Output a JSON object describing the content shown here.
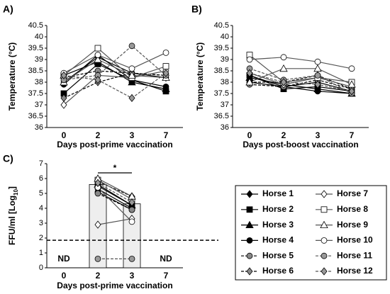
{
  "legend": [
    {
      "name": "Horse 1",
      "marker": "diamond",
      "fill": "#000000",
      "line": "#000000",
      "dashed": false
    },
    {
      "name": "Horse 2",
      "marker": "square",
      "fill": "#000000",
      "line": "#000000",
      "dashed": false
    },
    {
      "name": "Horse 3",
      "marker": "triangle",
      "fill": "#000000",
      "line": "#000000",
      "dashed": false
    },
    {
      "name": "Horse 4",
      "marker": "circle",
      "fill": "#000000",
      "line": "#000000",
      "dashed": false
    },
    {
      "name": "Horse 5",
      "marker": "circle",
      "fill": "#888888",
      "line": "#000000",
      "dashed": true
    },
    {
      "name": "Horse 6",
      "marker": "diamond",
      "fill": "#888888",
      "line": "#000000",
      "dashed": true
    },
    {
      "name": "Horse 7",
      "marker": "diamond",
      "fill": "#ffffff",
      "line": "#555555",
      "dashed": false
    },
    {
      "name": "Horse 8",
      "marker": "square",
      "fill": "#ffffff",
      "line": "#555555",
      "dashed": false
    },
    {
      "name": "Horse 9",
      "marker": "triangle",
      "fill": "#ffffff",
      "line": "#555555",
      "dashed": false
    },
    {
      "name": "Horse 10",
      "marker": "circle",
      "fill": "#ffffff",
      "line": "#555555",
      "dashed": false
    },
    {
      "name": "Horse 11",
      "marker": "circle",
      "fill": "#999999",
      "line": "#555555",
      "dashed": true
    },
    {
      "name": "Horse 12",
      "marker": "diamond",
      "fill": "#999999",
      "line": "#555555",
      "dashed": true
    }
  ],
  "chart_data": [
    {
      "type": "line",
      "panel": "A)",
      "xlabel": "Days post-prime vaccination",
      "ylabel": "Temperature (°C)",
      "categories": [
        "0",
        "2",
        "3",
        "7"
      ],
      "ylim": [
        36,
        40.5
      ],
      "yticks": [
        36,
        36.5,
        37,
        37.5,
        38,
        38.5,
        39,
        39.5,
        40,
        40.5
      ],
      "series": [
        {
          "values": [
            38.0,
            39.1,
            38.4,
            38.2
          ]
        },
        {
          "values": [
            37.5,
            38.8,
            38.1,
            37.6
          ]
        },
        {
          "values": [
            38.3,
            38.9,
            38.0,
            37.7
          ]
        },
        {
          "values": [
            37.9,
            39.2,
            38.1,
            37.8
          ]
        },
        {
          "values": [
            38.2,
            38.5,
            38.4,
            38.3
          ]
        },
        {
          "values": [
            37.3,
            38.0,
            38.4,
            38.3
          ]
        },
        {
          "values": [
            37.0,
            38.3,
            38.2,
            38.5
          ]
        },
        {
          "values": [
            38.3,
            39.5,
            38.2,
            38.7
          ]
        },
        {
          "values": [
            38.0,
            39.0,
            38.3,
            38.2
          ]
        },
        {
          "values": [
            38.4,
            39.2,
            38.6,
            39.3
          ]
        },
        {
          "values": [
            38.1,
            38.3,
            39.6,
            38.3
          ]
        },
        {
          "values": [
            38.3,
            38.1,
            37.3,
            38.4
          ]
        }
      ]
    },
    {
      "type": "line",
      "panel": "B)",
      "xlabel": "Days post-boost vaccination",
      "ylabel": "Temperature (°C)",
      "categories": [
        "0",
        "2",
        "3",
        "7"
      ],
      "ylim": [
        36,
        40.5
      ],
      "yticks": [
        36,
        36.5,
        37,
        37.5,
        38,
        38.5,
        39,
        39.5,
        40,
        40.5
      ],
      "series": [
        {
          "values": [
            38.3,
            37.8,
            38.0,
            37.6
          ]
        },
        {
          "values": [
            38.3,
            37.7,
            37.8,
            37.6
          ]
        },
        {
          "values": [
            38.2,
            37.9,
            37.7,
            37.5
          ]
        },
        {
          "values": [
            38.0,
            37.8,
            37.6,
            37.5
          ]
        },
        {
          "values": [
            37.9,
            37.8,
            38.1,
            37.7
          ]
        },
        {
          "values": [
            38.0,
            38.0,
            38.3,
            37.7
          ]
        },
        {
          "values": [
            38.4,
            37.9,
            38.2,
            37.8
          ]
        },
        {
          "values": [
            39.2,
            38.0,
            38.2,
            38.0
          ]
        },
        {
          "values": [
            38.0,
            38.6,
            38.6,
            37.9
          ]
        },
        {
          "values": [
            39.0,
            39.1,
            38.9,
            38.6
          ]
        },
        {
          "values": [
            38.6,
            38.1,
            38.3,
            37.5
          ]
        },
        {
          "values": [
            38.4,
            38.0,
            37.9,
            37.6
          ]
        }
      ]
    },
    {
      "type": "bar_line",
      "panel": "C)",
      "xlabel": "Days post-prime vaccination",
      "ylabel": {
        "text": "FFU/ml [Log",
        "sub": "10",
        "end": "]"
      },
      "categories": [
        "0",
        "2",
        "3",
        "7"
      ],
      "ylim": [
        0,
        7
      ],
      "yticks": [
        0,
        1,
        2,
        3,
        4,
        5,
        6,
        7
      ],
      "bars": {
        "values": [
          null,
          5.6,
          4.3,
          null
        ],
        "color": "#eeeeee"
      },
      "threshold": 1.85,
      "annotations": [
        {
          "text": "ND",
          "x": "0"
        },
        {
          "text": "ND",
          "x": "7"
        }
      ],
      "significance": {
        "label": "*",
        "from": "2",
        "to": "3"
      },
      "series": [
        {
          "values": [
            null,
            5.3,
            4.0,
            null
          ]
        },
        {
          "values": [
            null,
            5.5,
            4.2,
            null
          ]
        },
        {
          "values": [
            null,
            5.6,
            4.2,
            null
          ]
        },
        {
          "values": [
            null,
            5.1,
            3.9,
            null
          ]
        },
        {
          "values": [
            null,
            5.0,
            3.9,
            null
          ]
        },
        {
          "values": [
            null,
            5.8,
            4.8,
            null
          ]
        },
        {
          "values": [
            null,
            2.9,
            3.3,
            null
          ]
        },
        {
          "values": [
            null,
            5.9,
            4.6,
            null
          ]
        },
        {
          "values": [
            null,
            6.0,
            4.8,
            null
          ]
        },
        {
          "values": [
            null,
            5.4,
            3.1,
            null
          ]
        },
        {
          "values": [
            null,
            0.6,
            0.6,
            null
          ]
        },
        {
          "values": [
            null,
            5.7,
            4.4,
            null
          ]
        }
      ]
    }
  ]
}
